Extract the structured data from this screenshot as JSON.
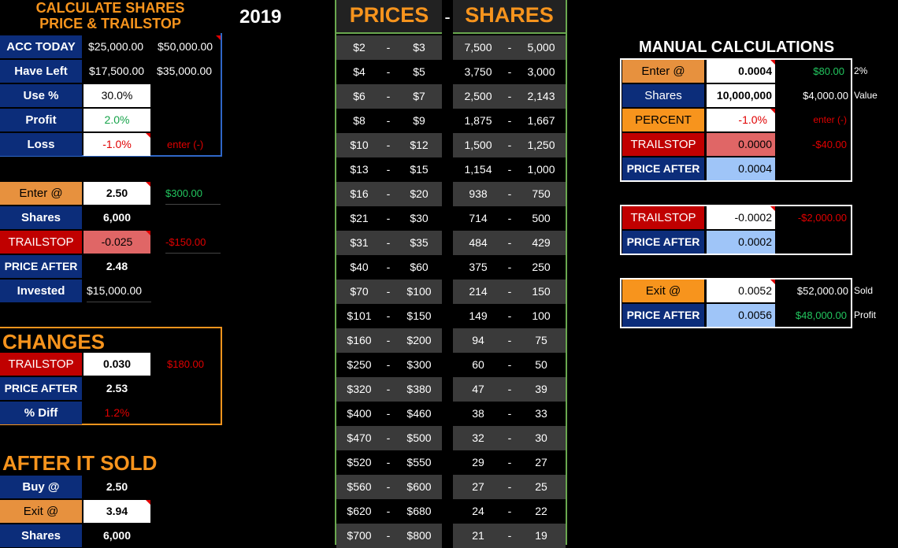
{
  "title": {
    "line1": "CALCULATE SHARES",
    "line2": "PRICE & TRAILSTOP",
    "year": "2019"
  },
  "top_left": {
    "acc_today_label": "ACC TODAY",
    "acc_today_1": "$25,000.00",
    "acc_today_2": "$50,000.00",
    "have_left_label": "Have Left",
    "have_left_1": "$17,500.00",
    "have_left_2": "$35,000.00",
    "use_pct_label": "Use %",
    "use_pct_value": "30.0%",
    "profit_label": "Profit",
    "profit_value": "2.0%",
    "loss_label": "Loss",
    "loss_value": "-1.0%",
    "loss_hint": "enter (-)"
  },
  "entry": {
    "enter_label": "Enter @",
    "enter_value": "2.50",
    "enter_amount": "$300.00",
    "shares_label": "Shares",
    "shares_value": "6,000",
    "trailstop_label": "TRAILSTOP",
    "trailstop_value": "-0.025",
    "trailstop_amount": "-$150.00",
    "price_after_label": "PRICE AFTER",
    "price_after_value": "2.48",
    "invested_label": "Invested",
    "invested_value": "$15,000.00"
  },
  "changes": {
    "heading": "CHANGES",
    "trailstop_label": "TRAILSTOP",
    "trailstop_value": "0.030",
    "trailstop_amount": "$180.00",
    "price_after_label": "PRICE AFTER",
    "price_after_value": "2.53",
    "diff_label": "% Diff",
    "diff_value": "1.2%"
  },
  "after_sold": {
    "heading": "AFTER IT SOLD",
    "buy_label": "Buy @",
    "buy_value": "2.50",
    "exit_label": "Exit @",
    "exit_value": "3.94",
    "shares_label": "Shares",
    "shares_value": "6,000"
  },
  "table": {
    "prices_heading": "PRICES",
    "dash_heading": "-",
    "shares_heading": "SHARES",
    "rows": [
      {
        "p1": "$2",
        "p2": "$3",
        "s1": "7,500",
        "s2": "5,000"
      },
      {
        "p1": "$4",
        "p2": "$5",
        "s1": "3,750",
        "s2": "3,000"
      },
      {
        "p1": "$6",
        "p2": "$7",
        "s1": "2,500",
        "s2": "2,143"
      },
      {
        "p1": "$8",
        "p2": "$9",
        "s1": "1,875",
        "s2": "1,667"
      },
      {
        "p1": "$10",
        "p2": "$12",
        "s1": "1,500",
        "s2": "1,250"
      },
      {
        "p1": "$13",
        "p2": "$15",
        "s1": "1,154",
        "s2": "1,000"
      },
      {
        "p1": "$16",
        "p2": "$20",
        "s1": "938",
        "s2": "750"
      },
      {
        "p1": "$21",
        "p2": "$30",
        "s1": "714",
        "s2": "500"
      },
      {
        "p1": "$31",
        "p2": "$35",
        "s1": "484",
        "s2": "429"
      },
      {
        "p1": "$40",
        "p2": "$60",
        "s1": "375",
        "s2": "250"
      },
      {
        "p1": "$70",
        "p2": "$100",
        "s1": "214",
        "s2": "150"
      },
      {
        "p1": "$101",
        "p2": "$150",
        "s1": "149",
        "s2": "100"
      },
      {
        "p1": "$160",
        "p2": "$200",
        "s1": "94",
        "s2": "75"
      },
      {
        "p1": "$250",
        "p2": "$300",
        "s1": "60",
        "s2": "50"
      },
      {
        "p1": "$320",
        "p2": "$380",
        "s1": "47",
        "s2": "39"
      },
      {
        "p1": "$400",
        "p2": "$460",
        "s1": "38",
        "s2": "33"
      },
      {
        "p1": "$470",
        "p2": "$500",
        "s1": "32",
        "s2": "30"
      },
      {
        "p1": "$520",
        "p2": "$550",
        "s1": "29",
        "s2": "27"
      },
      {
        "p1": "$560",
        "p2": "$600",
        "s1": "27",
        "s2": "25"
      },
      {
        "p1": "$620",
        "p2": "$680",
        "s1": "24",
        "s2": "22"
      },
      {
        "p1": "$700",
        "p2": "$800",
        "s1": "21",
        "s2": "19"
      }
    ],
    "dash": "-"
  },
  "manual": {
    "heading": "MANUAL CALCULATIONS",
    "enter_label": "Enter @",
    "enter_value": "0.0004",
    "enter_amount": "$80.00",
    "enter_note": "2%",
    "shares_label": "Shares",
    "shares_value": "10,000,000",
    "shares_amount": "$4,000.00",
    "shares_note": "Value",
    "percent_label": "PERCENT",
    "percent_value": "-1.0%",
    "percent_hint": "enter (-)",
    "trailstop_label": "TRAILSTOP",
    "trailstop_value": "0.0000",
    "trailstop_amount": "-$40.00",
    "price_after_label": "PRICE AFTER",
    "price_after_value": "0.0004",
    "ts2_label": "TRAILSTOP",
    "ts2_value": "-0.0002",
    "ts2_amount": "-$2,000.00",
    "pa2_label": "PRICE AFTER",
    "pa2_value": "0.0002",
    "exit_label": "Exit @",
    "exit_value": "0.0052",
    "exit_amount": "$52,000.00",
    "exit_note": "Sold",
    "pa3_label": "PRICE AFTER",
    "pa3_value": "0.0056",
    "pa3_amount": "$48,000.00",
    "pa3_note": "Profit"
  }
}
